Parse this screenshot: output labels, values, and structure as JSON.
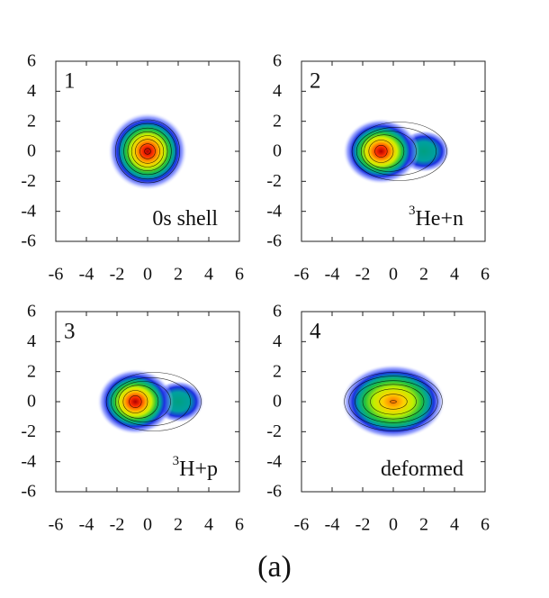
{
  "caption": "(a)",
  "chart_data": [
    {
      "type": "density",
      "label": "1",
      "annotation": [
        "0s shell"
      ],
      "xlim": [
        -6,
        6
      ],
      "ylim": [
        -6,
        6
      ],
      "xticks": [
        -6,
        -4,
        -2,
        0,
        2,
        4,
        6
      ],
      "yticks": [
        -6,
        -4,
        -2,
        0,
        2,
        4,
        6
      ]
    },
    {
      "type": "density",
      "label": "2",
      "annotation": [
        "3",
        "He+n"
      ],
      "xlim": [
        -6,
        6
      ],
      "ylim": [
        -6,
        6
      ],
      "xticks": [
        -6,
        -4,
        -2,
        0,
        2,
        4,
        6
      ],
      "yticks": [
        -6,
        -4,
        -2,
        0,
        2,
        4,
        6
      ]
    },
    {
      "type": "density",
      "label": "3",
      "annotation": [
        "3",
        "H+p"
      ],
      "xlim": [
        -6,
        6
      ],
      "ylim": [
        -6,
        6
      ],
      "xticks": [
        -6,
        -4,
        -2,
        0,
        2,
        4,
        6
      ],
      "yticks": [
        -6,
        -4,
        -2,
        0,
        2,
        4,
        6
      ]
    },
    {
      "type": "density",
      "label": "4",
      "annotation": [
        "deformed"
      ],
      "xlim": [
        -6,
        6
      ],
      "ylim": [
        -6,
        6
      ],
      "xticks": [
        -6,
        -4,
        -2,
        0,
        2,
        4,
        6
      ],
      "yticks": [
        -6,
        -4,
        -2,
        0,
        2,
        4,
        6
      ]
    }
  ]
}
